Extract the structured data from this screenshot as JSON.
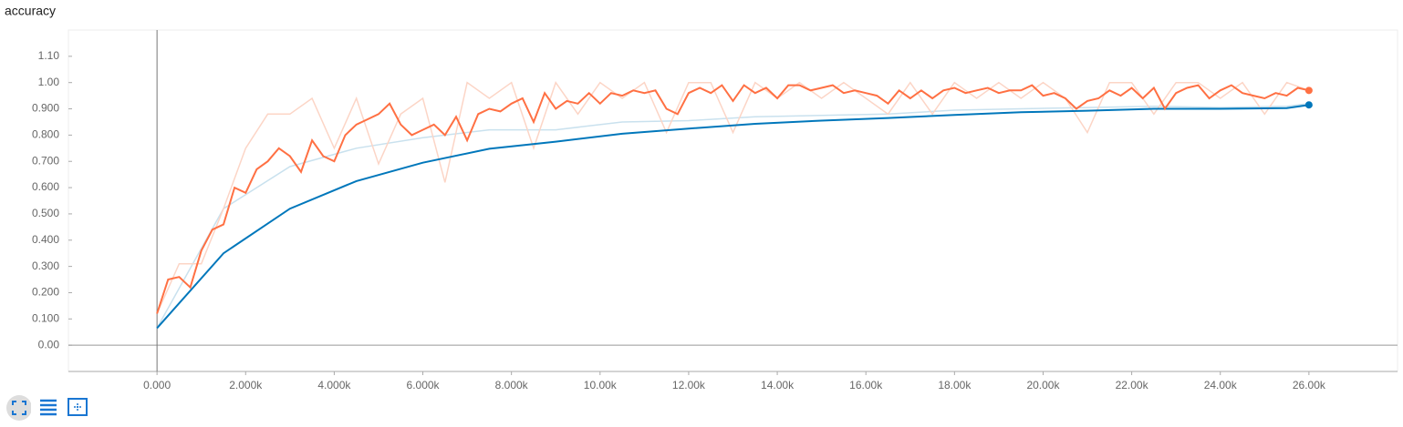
{
  "chart_data": {
    "type": "line",
    "title": "accuracy",
    "xlim": [
      -2000,
      28000
    ],
    "ylim": [
      -0.1,
      1.2
    ],
    "xticks": [
      {
        "value": 0,
        "label": "0.000"
      },
      {
        "value": 2000,
        "label": "2.000k"
      },
      {
        "value": 4000,
        "label": "4.000k"
      },
      {
        "value": 6000,
        "label": "6.000k"
      },
      {
        "value": 8000,
        "label": "8.000k"
      },
      {
        "value": 10000,
        "label": "10.00k"
      },
      {
        "value": 12000,
        "label": "12.00k"
      },
      {
        "value": 14000,
        "label": "14.00k"
      },
      {
        "value": 16000,
        "label": "16.00k"
      },
      {
        "value": 18000,
        "label": "18.00k"
      },
      {
        "value": 20000,
        "label": "20.00k"
      },
      {
        "value": 22000,
        "label": "22.00k"
      },
      {
        "value": 24000,
        "label": "24.00k"
      },
      {
        "value": 26000,
        "label": "26.00k"
      }
    ],
    "yticks": [
      {
        "value": 0,
        "label": "0.00"
      },
      {
        "value": 0.1,
        "label": "0.100"
      },
      {
        "value": 0.2,
        "label": "0.200"
      },
      {
        "value": 0.3,
        "label": "0.300"
      },
      {
        "value": 0.4,
        "label": "0.400"
      },
      {
        "value": 0.5,
        "label": "0.500"
      },
      {
        "value": 0.6,
        "label": "0.600"
      },
      {
        "value": 0.7,
        "label": "0.700"
      },
      {
        "value": 0.8,
        "label": "0.800"
      },
      {
        "value": 0.9,
        "label": "0.900"
      },
      {
        "value": 1.0,
        "label": "1.00"
      },
      {
        "value": 1.1,
        "label": "1.10"
      }
    ],
    "grid": false,
    "series": [
      {
        "color": "#c9e1ee",
        "x": [
          0,
          1500,
          3000,
          4500,
          6000,
          7500,
          9000,
          10500,
          12000,
          13500,
          15000,
          16500,
          18000,
          19500,
          21000,
          22500,
          24000,
          25500,
          26000
        ],
        "values": [
          0.065,
          0.52,
          0.68,
          0.75,
          0.79,
          0.82,
          0.82,
          0.85,
          0.855,
          0.87,
          0.875,
          0.88,
          0.895,
          0.9,
          0.905,
          0.91,
          0.905,
          0.91,
          0.92
        ]
      },
      {
        "color": "#fcd5c6",
        "x": [
          0,
          500,
          1000,
          1500,
          2000,
          2500,
          3000,
          3500,
          4000,
          4500,
          5000,
          5500,
          6000,
          6500,
          7000,
          7500,
          8000,
          8500,
          9000,
          9500,
          10000,
          10500,
          11000,
          11500,
          12000,
          12500,
          13000,
          13500,
          14000,
          14500,
          15000,
          15500,
          16000,
          16500,
          17000,
          17500,
          18000,
          18500,
          19000,
          19500,
          20000,
          20500,
          21000,
          21500,
          22000,
          22500,
          23000,
          23500,
          24000,
          24500,
          25000,
          25500,
          26000
        ],
        "values": [
          0.12,
          0.31,
          0.31,
          0.52,
          0.75,
          0.88,
          0.88,
          0.94,
          0.75,
          0.94,
          0.69,
          0.88,
          0.94,
          0.62,
          1.0,
          0.94,
          1.0,
          0.75,
          1.0,
          0.88,
          1.0,
          0.94,
          1.0,
          0.81,
          1.0,
          1.0,
          0.81,
          1.0,
          0.94,
          1.0,
          0.94,
          1.0,
          0.94,
          0.88,
          1.0,
          0.88,
          1.0,
          0.94,
          1.0,
          0.94,
          1.0,
          0.94,
          0.81,
          1.0,
          1.0,
          0.88,
          1.0,
          1.0,
          0.94,
          1.0,
          0.88,
          1.0,
          0.97
        ]
      },
      {
        "color": "#0077bb",
        "dot": true,
        "x": [
          0,
          1500,
          3000,
          4500,
          6000,
          7500,
          9000,
          10500,
          12000,
          13500,
          15000,
          16500,
          18000,
          19500,
          21000,
          22500,
          24000,
          25500,
          26000
        ],
        "values": [
          0.065,
          0.35,
          0.52,
          0.625,
          0.695,
          0.748,
          0.775,
          0.805,
          0.825,
          0.843,
          0.855,
          0.865,
          0.877,
          0.887,
          0.893,
          0.9,
          0.9,
          0.903,
          0.915
        ]
      },
      {
        "color": "#ff7043",
        "dot": true,
        "x": [
          0,
          250,
          500,
          750,
          1000,
          1250,
          1500,
          1750,
          2000,
          2250,
          2500,
          2750,
          3000,
          3250,
          3500,
          3750,
          4000,
          4250,
          4500,
          4750,
          5000,
          5250,
          5500,
          5750,
          6000,
          6250,
          6500,
          6750,
          7000,
          7250,
          7500,
          7750,
          8000,
          8250,
          8500,
          8750,
          9000,
          9250,
          9500,
          9750,
          10000,
          10250,
          10500,
          10750,
          11000,
          11250,
          11500,
          11750,
          12000,
          12250,
          12500,
          12750,
          13000,
          13250,
          13500,
          13750,
          14000,
          14250,
          14500,
          14750,
          15000,
          15250,
          15500,
          15750,
          16000,
          16250,
          16500,
          16750,
          17000,
          17250,
          17500,
          17750,
          18000,
          18250,
          18500,
          18750,
          19000,
          19250,
          19500,
          19750,
          20000,
          20250,
          20500,
          20750,
          21000,
          21250,
          21500,
          21750,
          22000,
          22250,
          22500,
          22750,
          23000,
          23250,
          23500,
          23750,
          24000,
          24250,
          24500,
          24750,
          25000,
          25250,
          25500,
          25750,
          26000
        ],
        "values": [
          0.12,
          0.25,
          0.26,
          0.22,
          0.36,
          0.44,
          0.46,
          0.6,
          0.58,
          0.67,
          0.7,
          0.75,
          0.72,
          0.66,
          0.78,
          0.72,
          0.7,
          0.8,
          0.84,
          0.86,
          0.88,
          0.92,
          0.84,
          0.8,
          0.82,
          0.84,
          0.8,
          0.87,
          0.78,
          0.88,
          0.9,
          0.89,
          0.92,
          0.94,
          0.85,
          0.96,
          0.9,
          0.93,
          0.92,
          0.96,
          0.92,
          0.96,
          0.95,
          0.97,
          0.96,
          0.97,
          0.9,
          0.88,
          0.96,
          0.98,
          0.96,
          0.99,
          0.93,
          0.99,
          0.96,
          0.98,
          0.94,
          0.99,
          0.99,
          0.97,
          0.98,
          0.99,
          0.96,
          0.97,
          0.96,
          0.95,
          0.92,
          0.97,
          0.94,
          0.97,
          0.94,
          0.97,
          0.98,
          0.96,
          0.97,
          0.98,
          0.96,
          0.97,
          0.97,
          0.99,
          0.95,
          0.96,
          0.94,
          0.9,
          0.93,
          0.94,
          0.97,
          0.95,
          0.98,
          0.94,
          0.98,
          0.9,
          0.96,
          0.98,
          0.99,
          0.94,
          0.97,
          0.99,
          0.96,
          0.95,
          0.94,
          0.96,
          0.95,
          0.98,
          0.97
        ]
      }
    ]
  }
}
